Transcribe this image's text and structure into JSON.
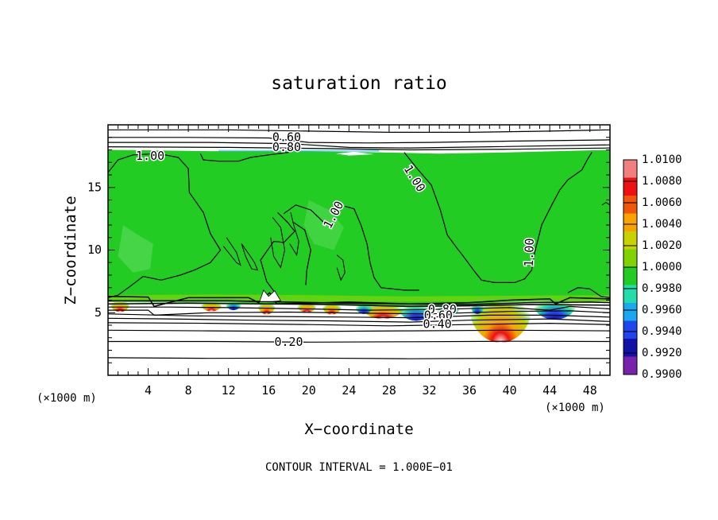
{
  "chart_data": {
    "type": "contour",
    "title": "saturation ratio",
    "xlabel": "X−coordinate",
    "ylabel": "Z−coordinate",
    "x_unit_left": "(×1000 m)",
    "x_unit_right": "(×1000 m)",
    "xlim": [
      0,
      50
    ],
    "ylim": [
      0,
      20
    ],
    "x_ticks": [
      4,
      8,
      12,
      16,
      20,
      24,
      28,
      32,
      36,
      40,
      44,
      48
    ],
    "y_ticks": [
      5,
      10,
      15
    ],
    "footer": "CONTOUR INTERVAL = 1.000E−01",
    "contour_labels": [
      {
        "text": "0.60",
        "x": 17.8,
        "y": 19.0
      },
      {
        "text": "0.80",
        "x": 17.8,
        "y": 18.2
      },
      {
        "text": "1.00",
        "x": 4.2,
        "y": 17.5,
        "rotate": 0
      },
      {
        "text": "1.00",
        "x": 22.5,
        "y": 12.8,
        "rotate": -62
      },
      {
        "text": "1.00",
        "x": 30.5,
        "y": 15.7,
        "rotate": 58
      },
      {
        "text": "1.00",
        "x": 42.0,
        "y": 9.8,
        "rotate": -88
      },
      {
        "text": "0.80",
        "x": 33.3,
        "y": 5.25
      },
      {
        "text": "0.60",
        "x": 32.9,
        "y": 4.75
      },
      {
        "text": "0.40",
        "x": 32.8,
        "y": 4.05
      },
      {
        "text": "0.20",
        "x": 18.0,
        "y": 2.65
      }
    ],
    "colorbar": {
      "labels": [
        "1.0100",
        "1.0080",
        "1.0060",
        "1.0040",
        "1.0020",
        "1.0000",
        "0.9980",
        "0.9960",
        "0.9940",
        "0.9920",
        "0.9900"
      ],
      "colors": [
        "#f08080",
        "#ee1111",
        "#f2550c",
        "#f7a400",
        "#c8d200",
        "#7fd400",
        "#22cc22",
        "#22ddaa",
        "#1aa8f0",
        "#2244ee",
        "#1111a8",
        "#7722aa"
      ]
    }
  }
}
